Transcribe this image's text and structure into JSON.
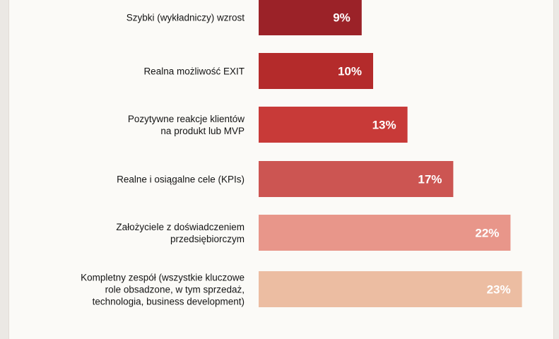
{
  "chart_data": {
    "type": "bar",
    "orientation": "horizontal",
    "categories": [
      [
        "Szybki (wykładniczy) wzrost"
      ],
      [
        "Realna możliwość EXIT"
      ],
      [
        "Pozytywne reakcje klientów",
        "na produkt lub MVP"
      ],
      [
        "Realne i osiągalne cele (KPIs)"
      ],
      [
        "Założyciele z doświadczeniem",
        "przedsiębiorczym"
      ],
      [
        "Kompletny zespół (wszystkie kluczowe",
        "role obsadzone, w tym sprzedaż,",
        "technologia, business development)"
      ]
    ],
    "values": [
      9,
      10,
      13,
      17,
      22,
      23
    ],
    "value_labels": [
      "9%",
      "10%",
      "13%",
      "17%",
      "22%",
      "23%"
    ],
    "colors": [
      "#9b2228",
      "#b42b2b",
      "#c83a38",
      "#cc5552",
      "#e8968a",
      "#ecbda2"
    ],
    "unit": "%",
    "grid": false,
    "legend": "none"
  }
}
